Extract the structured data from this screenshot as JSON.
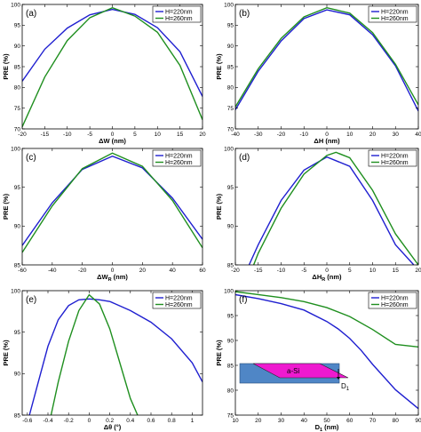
{
  "chart_data": [
    {
      "type": "line",
      "panel_label": "(a)",
      "xlabel_base": "ΔW",
      "xlabel_sub": "",
      "xlabel_unit": " (nm)",
      "ylabel": "PRE (%)",
      "xlim": [
        -20,
        20
      ],
      "ylim": [
        70,
        100
      ],
      "xticks": [
        -20,
        -15,
        -10,
        -5,
        0,
        5,
        10,
        15,
        20
      ],
      "yticks": [
        70,
        75,
        80,
        85,
        90,
        95,
        100
      ],
      "legend": "top-right",
      "series": [
        {
          "name": "H=220nm",
          "color": "#1f1fd0",
          "x": [
            -20,
            -15,
            -10,
            -5,
            0,
            5,
            10,
            15,
            20
          ],
          "y": [
            81.5,
            89.2,
            94.3,
            97.5,
            98.8,
            97.6,
            94.4,
            88.6,
            77.8
          ]
        },
        {
          "name": "H=260nm",
          "color": "#1f8f1f",
          "x": [
            -20,
            -15,
            -10,
            -5,
            0,
            5,
            10,
            15,
            20
          ],
          "y": [
            70.5,
            82.5,
            91.3,
            96.8,
            99.2,
            97.2,
            93.3,
            85.3,
            72.2
          ]
        }
      ]
    },
    {
      "type": "line",
      "panel_label": "(b)",
      "xlabel_base": "ΔH",
      "xlabel_sub": "",
      "xlabel_unit": " (nm)",
      "ylabel": "PRE (%)",
      "xlim": [
        -40,
        40
      ],
      "ylim": [
        70,
        100
      ],
      "xticks": [
        -40,
        -30,
        -20,
        -10,
        0,
        10,
        20,
        30,
        40
      ],
      "yticks": [
        70,
        75,
        80,
        85,
        90,
        95,
        100
      ],
      "legend": "top-right",
      "series": [
        {
          "name": "H=220nm",
          "color": "#1f1fd0",
          "x": [
            -40,
            -30,
            -20,
            -10,
            0,
            10,
            20,
            30,
            40
          ],
          "y": [
            74.6,
            83.9,
            91.2,
            96.6,
            98.7,
            97.5,
            92.7,
            85.2,
            74.3
          ]
        },
        {
          "name": "H=260nm",
          "color": "#1f8f1f",
          "x": [
            -40,
            -30,
            -20,
            -10,
            0,
            10,
            20,
            30,
            40
          ],
          "y": [
            75.3,
            84.5,
            91.8,
            97.0,
            99.2,
            97.9,
            93.2,
            85.6,
            75.8
          ]
        }
      ]
    },
    {
      "type": "line",
      "panel_label": "(c)",
      "xlabel_base": "ΔW",
      "xlabel_sub": "R",
      "xlabel_unit": " (nm)",
      "ylabel": "PRE (%)",
      "xlim": [
        -60,
        60
      ],
      "ylim": [
        85,
        100
      ],
      "xticks": [
        -60,
        -40,
        -20,
        0,
        20,
        40,
        60
      ],
      "yticks": [
        85,
        90,
        95,
        100
      ],
      "legend": "top-right",
      "series": [
        {
          "name": "H=220nm",
          "color": "#1f1fd0",
          "x": [
            -60,
            -40,
            -20,
            0,
            20,
            40,
            60
          ],
          "y": [
            87.5,
            93.0,
            97.3,
            99.0,
            97.5,
            93.6,
            88.3
          ]
        },
        {
          "name": "H=260nm",
          "color": "#1f8f1f",
          "x": [
            -60,
            -40,
            -20,
            0,
            20,
            40,
            60
          ],
          "y": [
            86.6,
            92.6,
            97.4,
            99.4,
            97.7,
            93.3,
            87.2
          ]
        }
      ]
    },
    {
      "type": "line",
      "panel_label": "(d)",
      "xlabel_base": "ΔH",
      "xlabel_sub": "R",
      "xlabel_unit": " (nm)",
      "ylabel": "PRE (%)",
      "xlim": [
        -20,
        20
      ],
      "ylim": [
        85,
        100
      ],
      "xticks": [
        -20,
        -15,
        -10,
        -5,
        0,
        5,
        10,
        15,
        20
      ],
      "yticks": [
        85,
        90,
        95,
        100
      ],
      "legend": "top-right",
      "series": [
        {
          "name": "H=220nm",
          "color": "#1f1fd0",
          "x": [
            -17,
            -15,
            -10,
            -5,
            0,
            5,
            10,
            15,
            19
          ],
          "y": [
            85.0,
            87.6,
            93.3,
            97.2,
            98.9,
            97.7,
            93.3,
            87.6,
            85.0
          ]
        },
        {
          "name": "H=260nm",
          "color": "#1f8f1f",
          "x": [
            -16,
            -15,
            -10,
            -5,
            0,
            2,
            5,
            10,
            15,
            20
          ],
          "y": [
            85.0,
            86.5,
            92.3,
            96.7,
            99.1,
            99.5,
            98.8,
            94.6,
            89.0,
            85.0
          ]
        }
      ]
    },
    {
      "type": "line",
      "panel_label": "(e)",
      "xlabel_base": "Δθ",
      "xlabel_sub": "",
      "xlabel_unit": " (°)",
      "ylabel": "PRE (%)",
      "xlim": [
        -0.65,
        1.1
      ],
      "ylim": [
        85,
        100
      ],
      "xticks": [
        -0.6,
        -0.4,
        -0.2,
        0,
        0.2,
        0.4,
        0.6,
        0.8,
        1
      ],
      "yticks": [
        85,
        90,
        95,
        100
      ],
      "legend": "top-right",
      "series": [
        {
          "name": "H=220nm",
          "color": "#1f1fd0",
          "x": [
            -0.58,
            -0.5,
            -0.4,
            -0.3,
            -0.2,
            -0.1,
            0,
            0.1,
            0.2,
            0.4,
            0.6,
            0.8,
            1.0,
            1.1
          ],
          "y": [
            85.0,
            88.7,
            93.3,
            96.5,
            98.2,
            98.9,
            99.0,
            98.9,
            98.7,
            97.6,
            96.2,
            94.2,
            91.3,
            89.0
          ]
        },
        {
          "name": "H=260nm",
          "color": "#1f8f1f",
          "x": [
            -0.37,
            -0.3,
            -0.2,
            -0.1,
            0,
            0.1,
            0.2,
            0.3,
            0.4,
            0.47
          ],
          "y": [
            85.0,
            89.0,
            93.9,
            97.6,
            99.5,
            98.4,
            95.4,
            91.2,
            87.0,
            85.0
          ]
        }
      ]
    },
    {
      "type": "line",
      "panel_label": "(f)",
      "xlabel_base": "D",
      "xlabel_sub": "1",
      "xlabel_unit": " (nm)",
      "ylabel": "PRE (%)",
      "xlim": [
        10,
        90
      ],
      "ylim": [
        75,
        100
      ],
      "xticks": [
        10,
        20,
        30,
        40,
        50,
        60,
        70,
        80,
        90
      ],
      "yticks": [
        75,
        80,
        85,
        90,
        95,
        100
      ],
      "legend": "top-right",
      "inset": {
        "material": "a-Si",
        "dim": "D",
        "dim_sub": "1"
      },
      "series": [
        {
          "name": "H=220nm",
          "color": "#1f1fd0",
          "x": [
            10,
            20,
            30,
            40,
            50,
            55,
            60,
            65,
            70,
            80,
            90
          ],
          "y": [
            99.2,
            98.4,
            97.4,
            96.1,
            93.8,
            92.3,
            90.4,
            88.0,
            85.2,
            80.1,
            76.3
          ]
        },
        {
          "name": "H=260nm",
          "color": "#1f8f1f",
          "x": [
            10,
            20,
            30,
            40,
            50,
            60,
            70,
            80,
            90
          ],
          "y": [
            99.8,
            99.2,
            98.6,
            97.8,
            96.6,
            94.8,
            92.2,
            89.2,
            88.7
          ]
        }
      ]
    }
  ]
}
